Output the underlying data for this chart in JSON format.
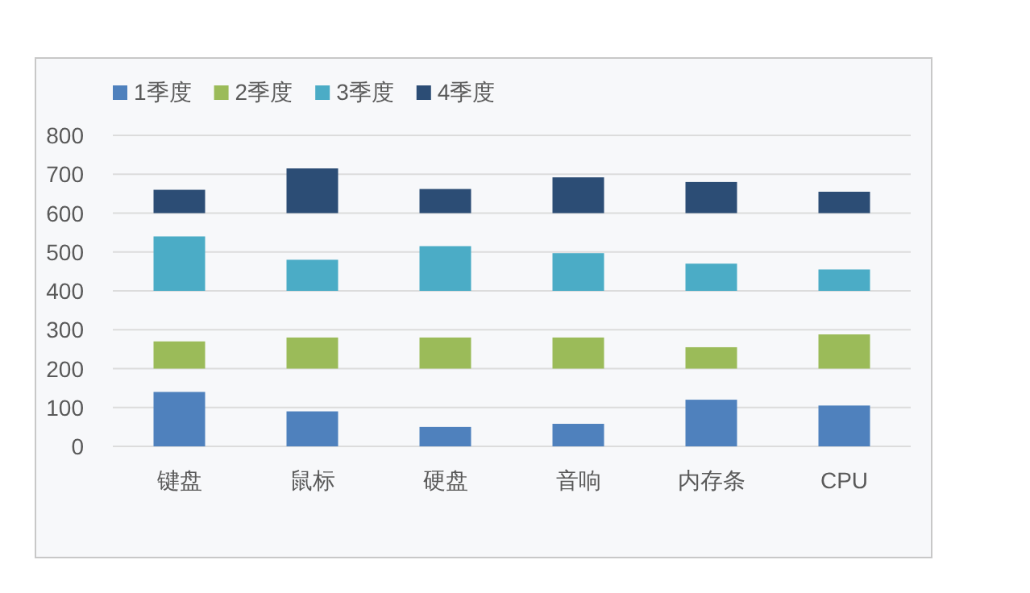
{
  "chart_data": {
    "type": "bar",
    "categories": [
      "键盘",
      "鼠标",
      "硬盘",
      "音响",
      "内存条",
      "CPU"
    ],
    "series": [
      {
        "name": "1季度",
        "color": "#4f81bd",
        "values": [
          140,
          90,
          50,
          58,
          120,
          105
        ],
        "base": [
          0,
          0,
          0,
          0,
          0,
          0
        ]
      },
      {
        "name": "2季度",
        "color": "#9bbb59",
        "values": [
          70,
          80,
          80,
          80,
          55,
          88
        ],
        "base": [
          200,
          200,
          200,
          200,
          200,
          200
        ]
      },
      {
        "name": "3季度",
        "color": "#4bacc6",
        "values": [
          140,
          80,
          115,
          97,
          70,
          55
        ],
        "base": [
          400,
          400,
          400,
          400,
          400,
          400
        ]
      },
      {
        "name": "4季度",
        "color": "#2c4d75",
        "values": [
          60,
          115,
          62,
          92,
          80,
          55
        ],
        "base": [
          600,
          600,
          600,
          600,
          600,
          600
        ]
      }
    ],
    "ylim": [
      0,
      800
    ],
    "yticks": [
      0,
      100,
      200,
      300,
      400,
      500,
      600,
      700,
      800
    ],
    "grid": "y",
    "legend": "top left"
  }
}
